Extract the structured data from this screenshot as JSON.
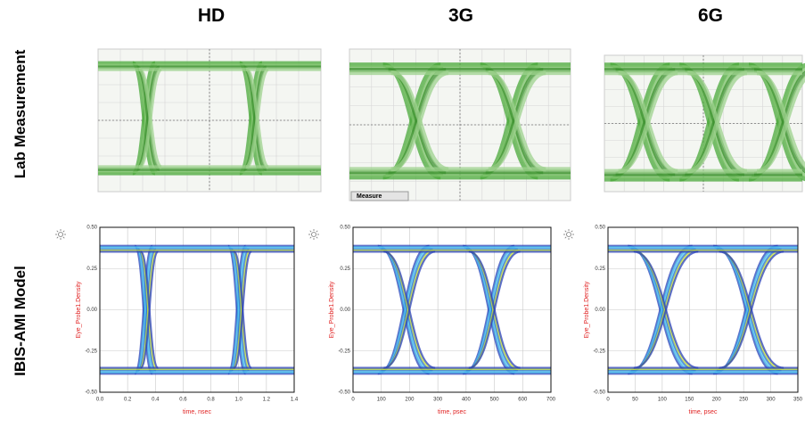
{
  "columns": [
    "HD",
    "3G",
    "6G"
  ],
  "rows": [
    "Lab Measurement",
    "IBIS-AMI Model"
  ],
  "lab_measurement": {
    "button": "Measure"
  },
  "model_plots": [
    {
      "ylabel": "Eye_Probe1.Density",
      "xlabel": "time, nsec",
      "ylim": [
        -0.5,
        0.5
      ],
      "yticks": [
        {
          "value": -0.5,
          "label": "-0.50"
        },
        {
          "value": -0.25,
          "label": "-0.25"
        },
        {
          "value": 0,
          "label": "0.00"
        },
        {
          "value": 0.25,
          "label": "0.25"
        },
        {
          "value": 0.5,
          "label": "0.50"
        }
      ],
      "xlim": [
        0,
        1.4
      ],
      "xticks": [
        {
          "value": 0,
          "label": "0.0"
        },
        0.2,
        0.4,
        0.6,
        0.8,
        {
          "value": 1,
          "label": "1.0"
        },
        1.2,
        1.4
      ]
    },
    {
      "ylabel": "Eye_Probe1.Density",
      "xlabel": "time, psec",
      "ylim": [
        -0.5,
        0.5
      ],
      "yticks": [
        {
          "value": -0.5,
          "label": "-0.50"
        },
        {
          "value": -0.25,
          "label": "-0.25"
        },
        {
          "value": 0,
          "label": "0.00"
        },
        {
          "value": 0.25,
          "label": "0.25"
        },
        {
          "value": 0.5,
          "label": "0.50"
        }
      ],
      "xlim": [
        0,
        700
      ],
      "xticks": [
        0,
        100,
        200,
        300,
        400,
        500,
        600,
        700
      ]
    },
    {
      "ylabel": "Eye_Probe1.Density",
      "xlabel": "time, psec",
      "ylim": [
        -0.5,
        0.5
      ],
      "yticks": [
        {
          "value": -0.5,
          "label": "-0.50"
        },
        {
          "value": -0.25,
          "label": "-0.25"
        },
        {
          "value": 0,
          "label": "0.00"
        },
        {
          "value": 0.25,
          "label": "0.25"
        },
        {
          "value": 0.5,
          "label": "0.50"
        }
      ],
      "xlim": [
        0,
        350
      ],
      "xticks": [
        0,
        50,
        100,
        150,
        200,
        250,
        300,
        350
      ]
    }
  ]
}
